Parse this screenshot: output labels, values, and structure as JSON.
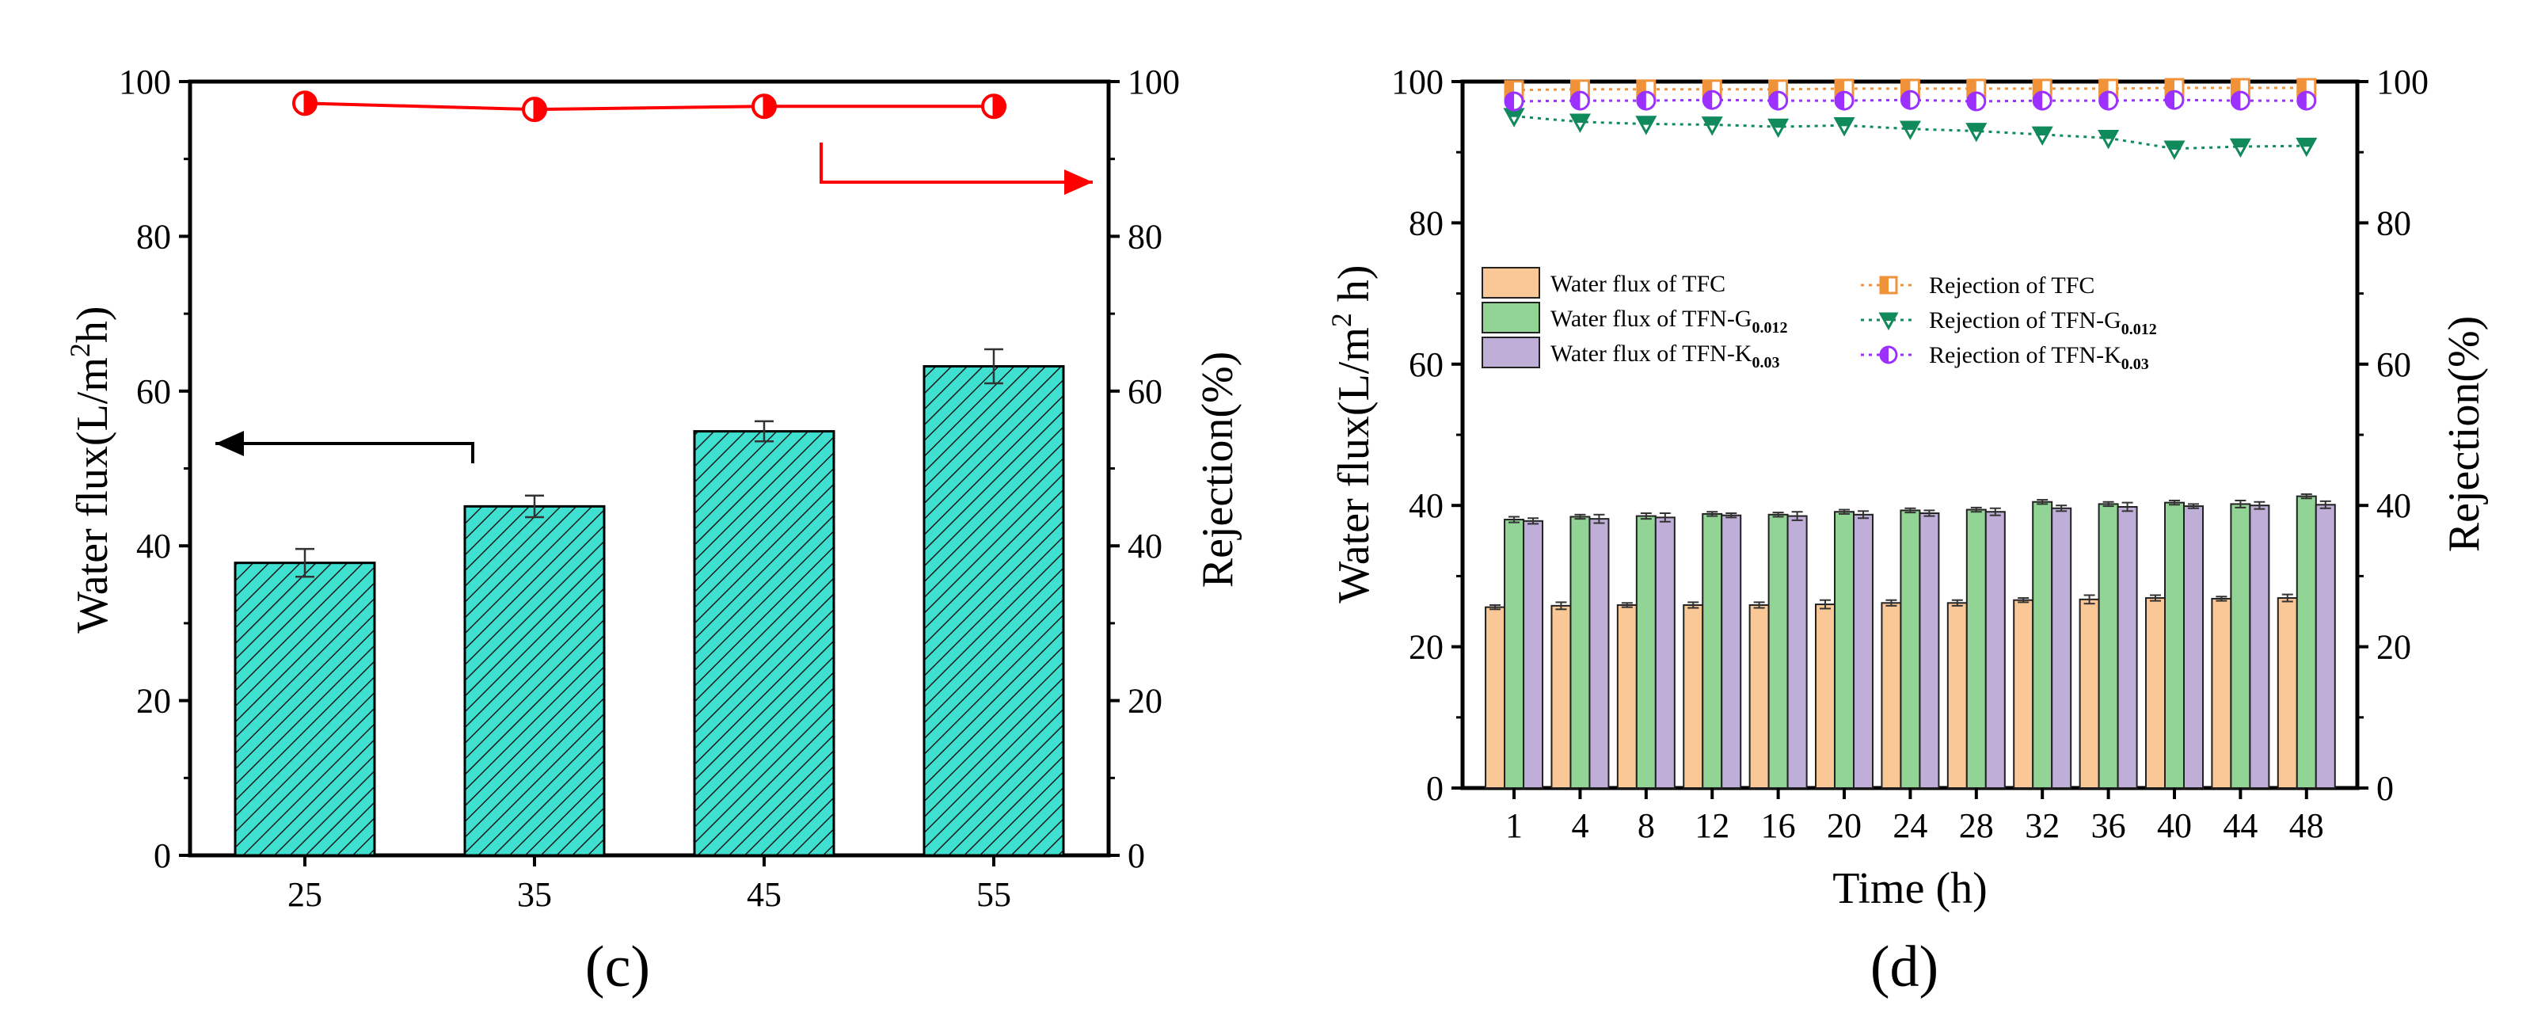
{
  "chart_data": [
    {
      "panel": "c",
      "type": "bar",
      "panel_label": "(c)",
      "categories": [
        "25",
        "35",
        "45",
        "55"
      ],
      "series": [
        {
          "name": "Water flux",
          "axis": "left",
          "kind": "bar",
          "color": "#40e0d0",
          "values": [
            37.8,
            45.1,
            54.8,
            63.2
          ],
          "errors": [
            1.8,
            1.4,
            1.3,
            2.2
          ]
        },
        {
          "name": "Rejection",
          "axis": "right",
          "kind": "line",
          "color": "#ff0000",
          "values": [
            97.2,
            96.4,
            96.8,
            96.8
          ]
        }
      ],
      "ylabel": "Water flux(L/m²h)",
      "ylabel_parts": [
        "Water flux(L/m",
        "2",
        "h)"
      ],
      "y2label": "Rejection(%)",
      "ylim": [
        0,
        100
      ],
      "y2lim": [
        0,
        100
      ],
      "yticks": [
        "0",
        "20",
        "40",
        "60",
        "80",
        "100"
      ],
      "y2ticks": [
        "0",
        "20",
        "40",
        "60",
        "80",
        "100"
      ]
    },
    {
      "panel": "d",
      "type": "bar",
      "panel_label": "(d)",
      "categories": [
        "1",
        "4",
        "8",
        "12",
        "16",
        "20",
        "24",
        "28",
        "32",
        "36",
        "40",
        "44",
        "48"
      ],
      "series": [
        {
          "name": "Water flux of TFC",
          "axis": "left",
          "kind": "bar",
          "color": "#f9c896",
          "values": [
            25.6,
            25.8,
            25.9,
            25.9,
            25.9,
            26.0,
            26.2,
            26.2,
            26.6,
            26.7,
            26.9,
            26.8,
            26.9
          ],
          "errors": [
            0.3,
            0.5,
            0.3,
            0.4,
            0.4,
            0.6,
            0.4,
            0.4,
            0.3,
            0.6,
            0.4,
            0.3,
            0.5
          ]
        },
        {
          "name": "Water flux of TFN-G",
          "sub": "0.012",
          "axis": "left",
          "kind": "bar",
          "color": "#92d495",
          "values": [
            38.0,
            38.4,
            38.5,
            38.8,
            38.7,
            39.1,
            39.3,
            39.4,
            40.5,
            40.2,
            40.4,
            40.2,
            41.3
          ],
          "errors": [
            0.4,
            0.3,
            0.4,
            0.3,
            0.3,
            0.3,
            0.3,
            0.3,
            0.3,
            0.3,
            0.3,
            0.5,
            0.3
          ]
        },
        {
          "name": "Water flux of TFN-K",
          "sub": "0.03",
          "axis": "left",
          "kind": "bar",
          "color": "#bfaed8",
          "values": [
            37.8,
            38.1,
            38.3,
            38.6,
            38.5,
            38.7,
            38.9,
            39.1,
            39.6,
            39.8,
            39.9,
            40.0,
            40.1
          ],
          "errors": [
            0.4,
            0.6,
            0.6,
            0.3,
            0.6,
            0.5,
            0.4,
            0.5,
            0.4,
            0.6,
            0.3,
            0.5,
            0.5
          ]
        },
        {
          "name": "Rejection of TFC",
          "axis": "right",
          "kind": "line",
          "color": "#f0923a",
          "marker": "square-half",
          "values": [
            98.8,
            98.9,
            98.9,
            98.9,
            98.9,
            99.0,
            99.0,
            99.0,
            99.0,
            99.0,
            99.1,
            99.1,
            99.1
          ]
        },
        {
          "name": "Rejection of TFN-G",
          "sub": "0.012",
          "axis": "right",
          "kind": "line",
          "color": "#118a5b",
          "marker": "triangle-down-half",
          "values": [
            95.1,
            94.3,
            94.0,
            93.9,
            93.6,
            93.8,
            93.3,
            93.0,
            92.5,
            92.0,
            90.5,
            90.8,
            90.9
          ]
        },
        {
          "name": "Rejection of TFN-K",
          "sub": "0.03",
          "axis": "right",
          "kind": "line",
          "color": "#9b30ff",
          "marker": "circle-half",
          "values": [
            97.2,
            97.3,
            97.3,
            97.4,
            97.3,
            97.3,
            97.4,
            97.2,
            97.3,
            97.3,
            97.4,
            97.3,
            97.3
          ]
        }
      ],
      "xlabel": "Time (h)",
      "ylabel": "Water flux(L/m² h)",
      "ylabel_parts": [
        "Water flux(L/m",
        "2",
        " h)"
      ],
      "y2label": "Rejection(%)",
      "ylim": [
        0,
        100
      ],
      "y2lim": [
        0,
        100
      ],
      "yticks": [
        "0",
        "20",
        "40",
        "60",
        "80",
        "100"
      ],
      "y2ticks": [
        "0",
        "20",
        "40",
        "60",
        "80",
        "100"
      ],
      "legend_position": "upper-left"
    }
  ]
}
